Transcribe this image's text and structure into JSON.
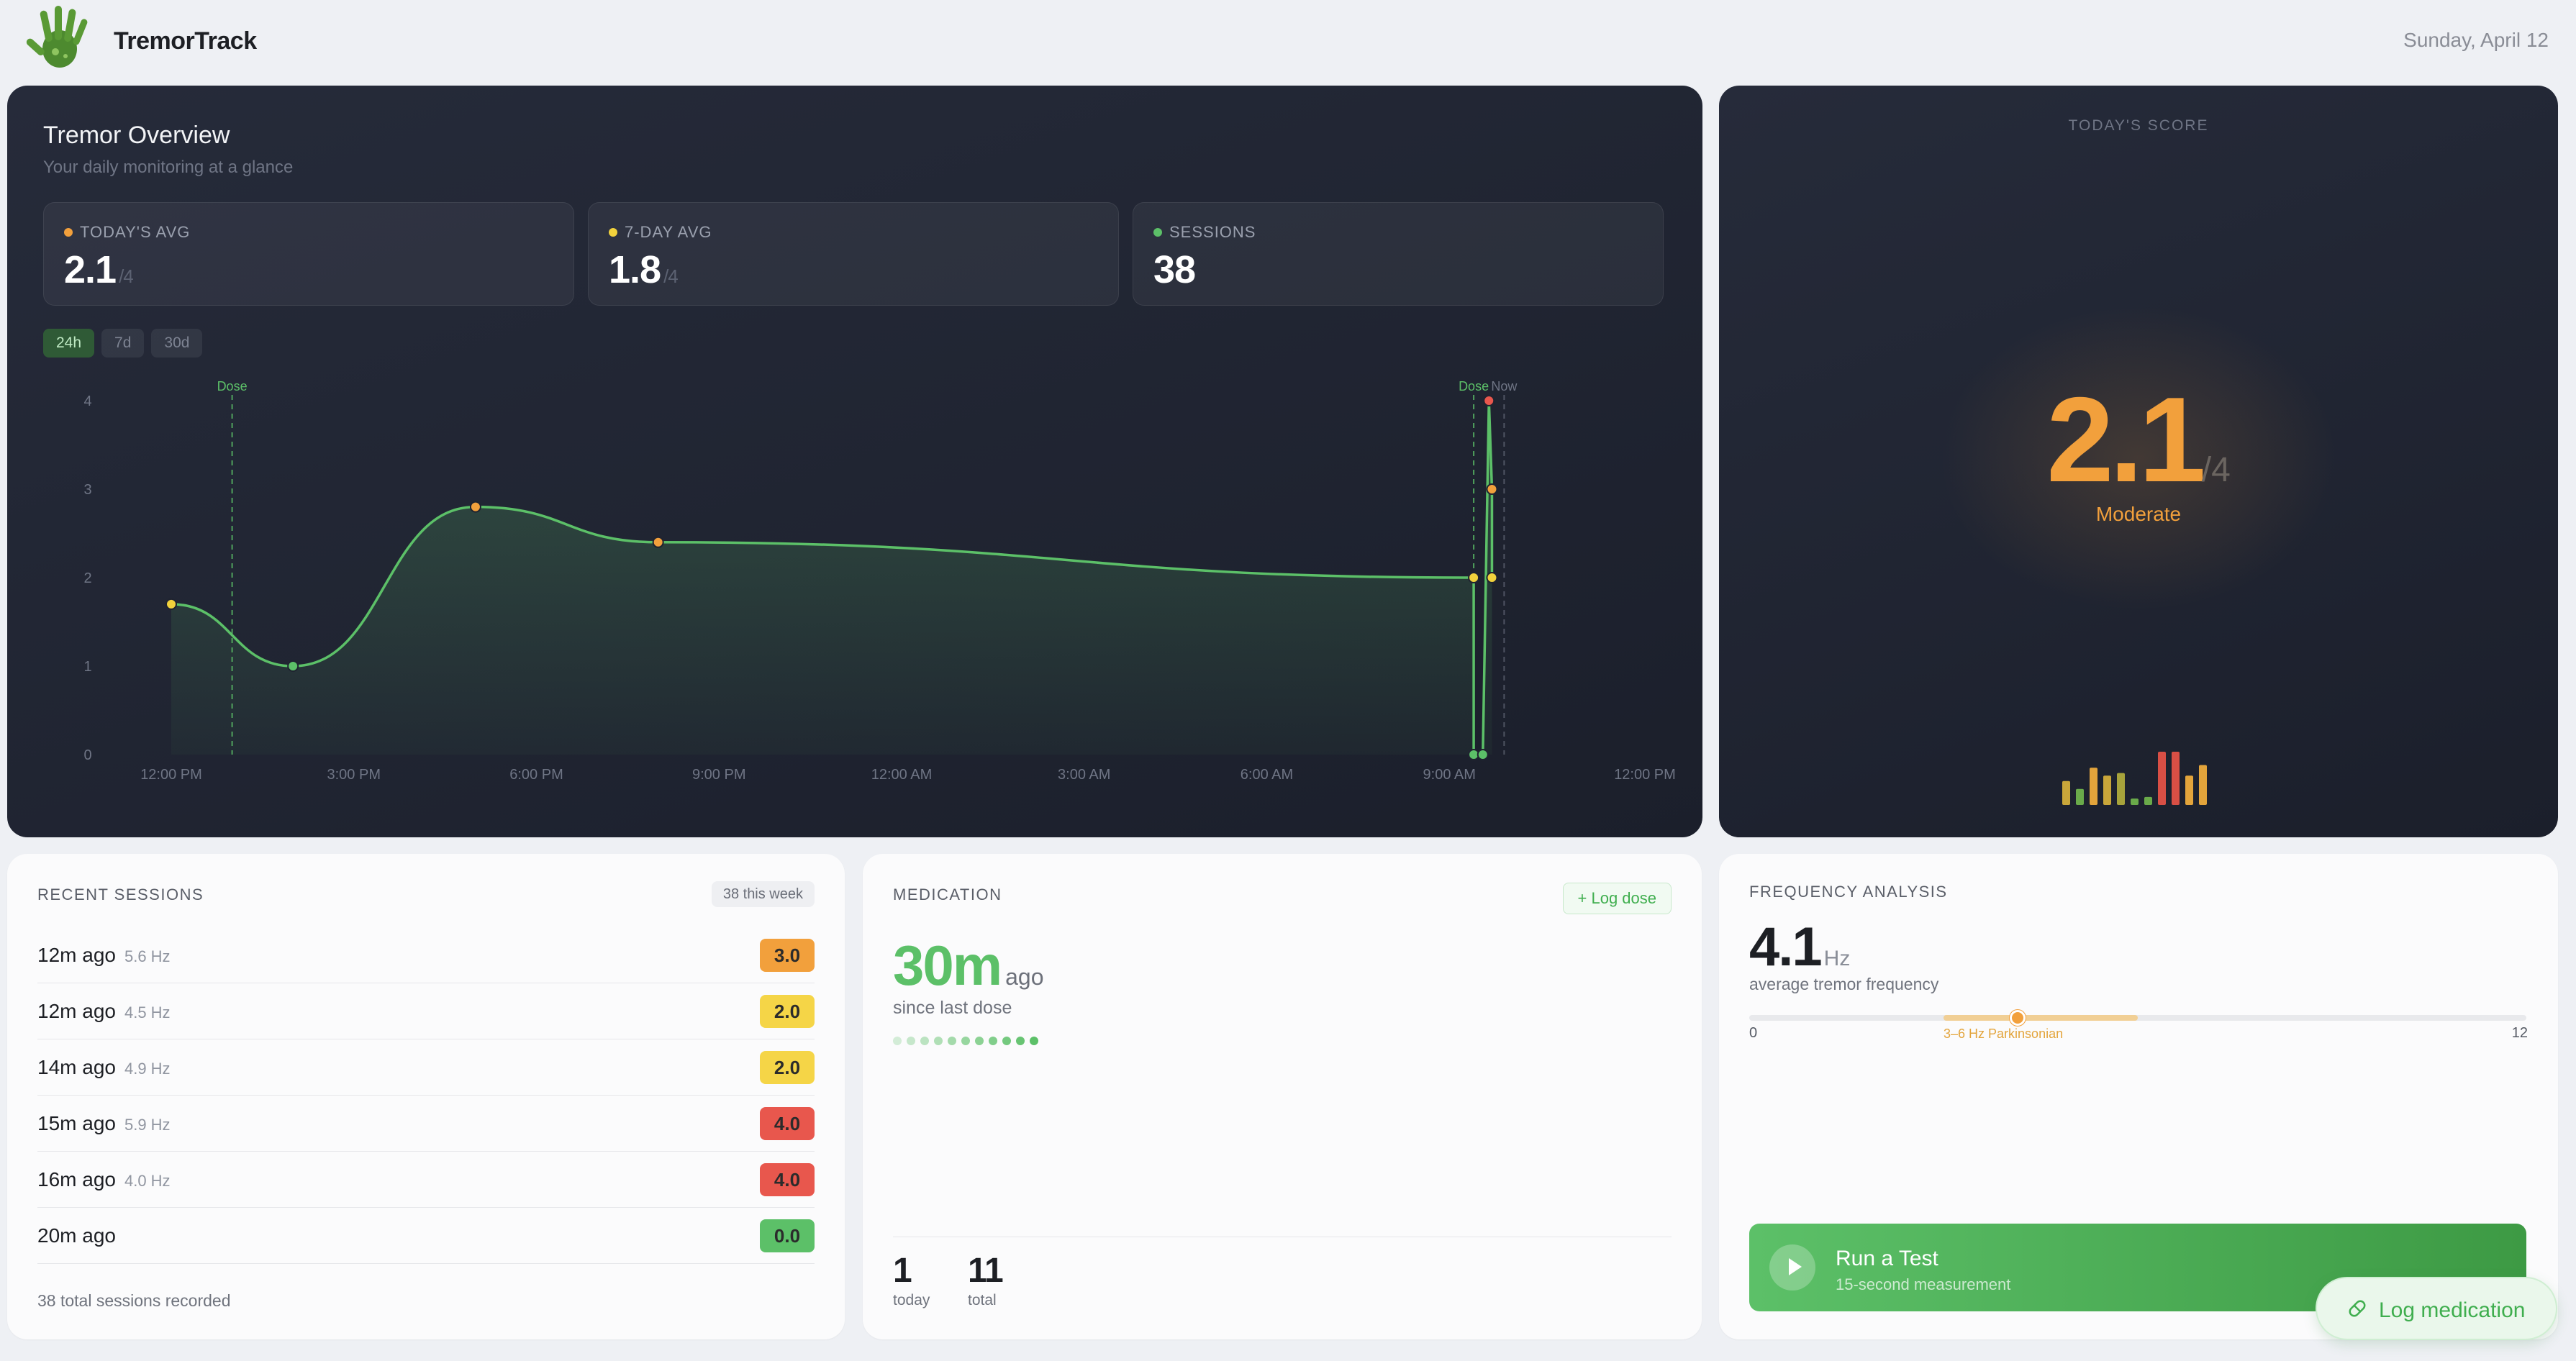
{
  "header": {
    "app_name": "TremorTrack",
    "date": "Sunday, April 12",
    "logo_icon": "hand-logo-icon"
  },
  "overview": {
    "title": "Tremor Overview",
    "subtitle": "Your daily monitoring at a glance",
    "stats": [
      {
        "label": "TODAY'S AVG",
        "value": "2.1",
        "unit": "/4",
        "dot_color": "#f2a03c"
      },
      {
        "label": "7-DAY AVG",
        "value": "1.8",
        "unit": "/4",
        "dot_color": "#f2d23c"
      },
      {
        "label": "SESSIONS",
        "value": "38",
        "unit": "",
        "dot_color": "#5cc068"
      }
    ],
    "range_tabs": [
      "24h",
      "7d",
      "30d"
    ],
    "active_range": "24h"
  },
  "chart_data": {
    "type": "area",
    "y_ticks": [
      "0",
      "1",
      "2",
      "3",
      "4"
    ],
    "ylim": [
      0,
      4
    ],
    "x_ticks": [
      "12:00 PM",
      "3:00 PM",
      "6:00 PM",
      "9:00 PM",
      "12:00 AM",
      "3:00 AM",
      "6:00 AM",
      "9:00 AM",
      "12:00 PM"
    ],
    "x_hours_range": [
      0,
      24
    ],
    "points": [
      {
        "h": 0.0,
        "v": 1.7,
        "color": "#f2d23c"
      },
      {
        "h": 2.0,
        "v": 1.0,
        "color": "#5cc068"
      },
      {
        "h": 5.0,
        "v": 2.8,
        "color": "#f2a03c"
      },
      {
        "h": 8.0,
        "v": 2.4,
        "color": "#f2a03c"
      },
      {
        "h": 21.4,
        "v": 2.0,
        "color": "#f2d23c"
      },
      {
        "h": 21.4,
        "v": 0.0,
        "color": "#5cc068"
      },
      {
        "h": 21.55,
        "v": 0.0,
        "color": "#5cc068"
      },
      {
        "h": 21.65,
        "v": 4.0,
        "color": "#e8574d"
      },
      {
        "h": 21.7,
        "v": 3.0,
        "color": "#f2a03c"
      },
      {
        "h": 21.7,
        "v": 2.0,
        "color": "#f2d23c"
      }
    ],
    "markers": [
      {
        "h": 1.0,
        "label": "Dose",
        "color": "#5cc068"
      },
      {
        "h": 21.4,
        "label": "Dose",
        "color": "#5cc068"
      },
      {
        "h": 21.9,
        "label": "Now",
        "color": "#6f7585"
      }
    ],
    "line_color": "#5cc068"
  },
  "score": {
    "label": "TODAY'S SCORE",
    "value": "2.1",
    "unit": "/4",
    "severity": "Moderate",
    "mini_bars": [
      {
        "v": 0.45,
        "color": "#c9a63a"
      },
      {
        "v": 0.3,
        "color": "#6aaa4a"
      },
      {
        "v": 0.7,
        "color": "#e3a43b"
      },
      {
        "v": 0.55,
        "color": "#c9a63a"
      },
      {
        "v": 0.6,
        "color": "#a7a33b"
      },
      {
        "v": 0.12,
        "color": "#6aaa4a"
      },
      {
        "v": 0.15,
        "color": "#6aaa4a"
      },
      {
        "v": 1.0,
        "color": "#d84f45"
      },
      {
        "v": 1.0,
        "color": "#d84f45"
      },
      {
        "v": 0.55,
        "color": "#e3a43b"
      },
      {
        "v": 0.75,
        "color": "#e3a43b"
      }
    ]
  },
  "sessions": {
    "title": "RECENT SESSIONS",
    "badge": "38 this week",
    "rows": [
      {
        "time": "12m ago",
        "hz": "5.6 Hz",
        "score": "3.0",
        "color": "#f2a03c"
      },
      {
        "time": "12m ago",
        "hz": "4.5 Hz",
        "score": "2.0",
        "color": "#f5d547"
      },
      {
        "time": "14m ago",
        "hz": "4.9 Hz",
        "score": "2.0",
        "color": "#f5d547"
      },
      {
        "time": "15m ago",
        "hz": "5.9 Hz",
        "score": "4.0",
        "color": "#e8574d"
      },
      {
        "time": "16m ago",
        "hz": "4.0 Hz",
        "score": "4.0",
        "color": "#e8574d"
      },
      {
        "time": "20m ago",
        "hz": "",
        "score": "0.0",
        "color": "#5cc068"
      }
    ],
    "footer": "38 total sessions recorded"
  },
  "medication": {
    "title": "MEDICATION",
    "log_button": "+ Log dose",
    "since_value": "30m",
    "since_suffix": "ago",
    "since_label": "since last dose",
    "dot_count": 11,
    "today_value": "1",
    "today_label": "today",
    "total_value": "11",
    "total_label": "total"
  },
  "frequency": {
    "title": "FREQUENCY ANALYSIS",
    "value": "4.1",
    "unit": "Hz",
    "subtitle": "average tremor frequency",
    "scale_min": "0",
    "scale_max": "12",
    "band_label": "3–6 Hz Parkinsonian",
    "run_title": "Run a Test",
    "run_sub": "15-second measurement"
  },
  "fab": {
    "label": "Log medication",
    "icon": "pill-icon"
  }
}
